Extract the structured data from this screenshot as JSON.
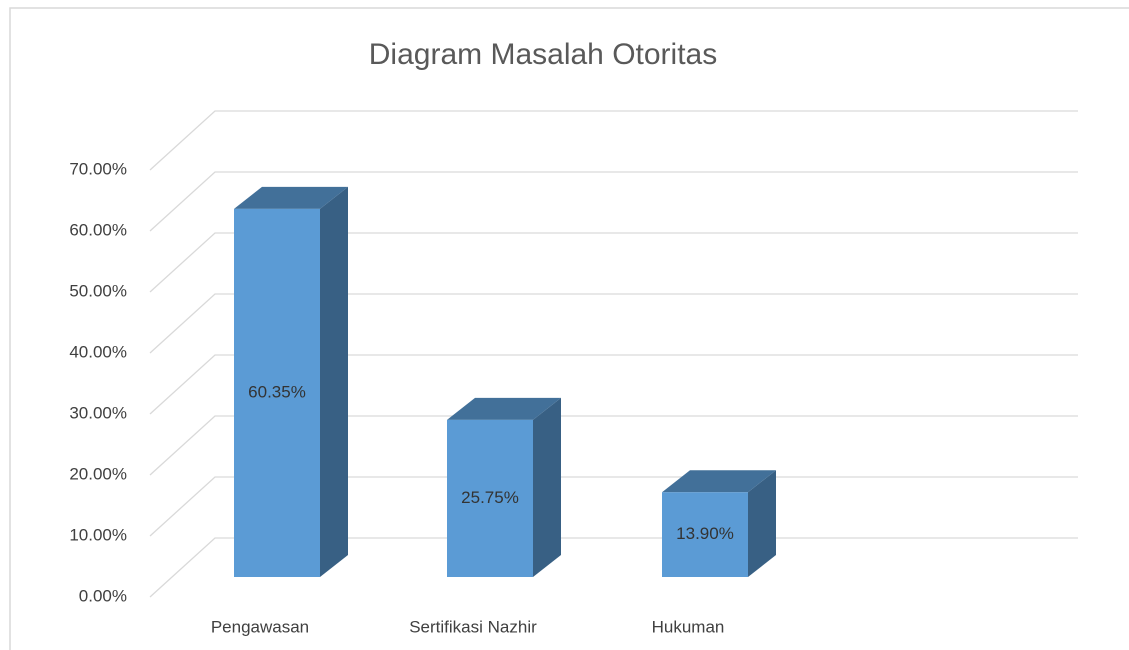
{
  "chart_data": {
    "type": "bar3d",
    "title": "Diagram Masalah Otoritas",
    "categories": [
      "Pengawasan",
      "Sertifikasi Nazhir",
      "Hukuman"
    ],
    "values": [
      60.35,
      25.75,
      13.9
    ],
    "value_labels": [
      "60.35%",
      "25.75%",
      "13.90%"
    ],
    "color": "#5b9bd5",
    "ylim": [
      0,
      70
    ],
    "yticks": [
      {
        "value": 0,
        "label": "0.00%"
      },
      {
        "value": 10,
        "label": "10.00%"
      },
      {
        "value": 20,
        "label": "20.00%"
      },
      {
        "value": 30,
        "label": "30.00%"
      },
      {
        "value": 40,
        "label": "40.00%"
      },
      {
        "value": 50,
        "label": "50.00%"
      },
      {
        "value": 60,
        "label": "60.00%"
      },
      {
        "value": 70,
        "label": "70.00%"
      }
    ],
    "grid": true
  }
}
